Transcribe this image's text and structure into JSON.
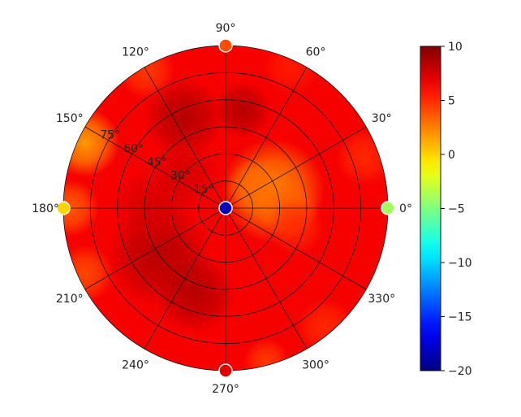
{
  "chart_data": {
    "type": "heatmap",
    "projection": "polar",
    "title": "",
    "angular_ticks_deg": [
      0,
      30,
      60,
      90,
      120,
      150,
      180,
      210,
      240,
      270,
      300,
      330
    ],
    "angular_tick_labels": [
      "0°",
      "30°",
      "60°",
      "90°",
      "120°",
      "150°",
      "180°",
      "210°",
      "240°",
      "270°",
      "300°",
      "330°"
    ],
    "radial_ticks_deg": [
      15,
      30,
      45,
      60,
      75
    ],
    "radial_tick_labels": [
      "15°",
      "30°",
      "45°",
      "60°",
      "75°"
    ],
    "radial_label_angle_deg": 150,
    "radial_range_deg": [
      0,
      90
    ],
    "grid": true,
    "colormap": "jet",
    "colorbar": {
      "location": "right",
      "range": [
        -20,
        10
      ],
      "ticks": [
        10,
        5,
        0,
        -5,
        -10,
        -15,
        -20
      ],
      "tick_labels": [
        "10",
        "5",
        "0",
        "−5",
        "−10",
        "−15",
        "−20"
      ]
    },
    "background_value": 6.5,
    "field_blobs": [
      {
        "az": 20,
        "r": 28,
        "value": 2.0,
        "spread": 18
      },
      {
        "az": 35,
        "r": 20,
        "value": 3.0,
        "spread": 10
      },
      {
        "az": 0,
        "r": 35,
        "value": 3.5,
        "spread": 10
      },
      {
        "az": 115,
        "r": 55,
        "value": 8.5,
        "spread": 14
      },
      {
        "az": 80,
        "r": 55,
        "value": 8.5,
        "spread": 10
      },
      {
        "az": 215,
        "r": 45,
        "value": 8.5,
        "spread": 18
      },
      {
        "az": 250,
        "r": 50,
        "value": 8.5,
        "spread": 14
      },
      {
        "az": 180,
        "r": 40,
        "value": 7.5,
        "spread": 14
      },
      {
        "az": 140,
        "r": 30,
        "value": 7.5,
        "spread": 12
      },
      {
        "az": 155,
        "r": 86,
        "value": 1.5,
        "spread": 12
      },
      {
        "az": 180,
        "r": 86,
        "value": 3.5,
        "spread": 10
      },
      {
        "az": 205,
        "r": 86,
        "value": 4.0,
        "spread": 10
      },
      {
        "az": 120,
        "r": 88,
        "value": 4.5,
        "spread": 10
      },
      {
        "az": 65,
        "r": 86,
        "value": 5.5,
        "spread": 10
      },
      {
        "az": 20,
        "r": 82,
        "value": 5.0,
        "spread": 10
      },
      {
        "az": 310,
        "r": 86,
        "value": 5.0,
        "spread": 10
      },
      {
        "az": 285,
        "r": 88,
        "value": 4.5,
        "spread": 8
      },
      {
        "az": 345,
        "r": 40,
        "value": 5.0,
        "spread": 10
      }
    ],
    "markers": [
      {
        "az": 0,
        "r": 0,
        "value": -18
      },
      {
        "az": 0,
        "r": 90,
        "value": -4
      },
      {
        "az": 90,
        "r": 90,
        "value": 4
      },
      {
        "az": 180,
        "r": 90,
        "value": 0
      },
      {
        "az": 270,
        "r": 90,
        "value": 7
      }
    ]
  }
}
